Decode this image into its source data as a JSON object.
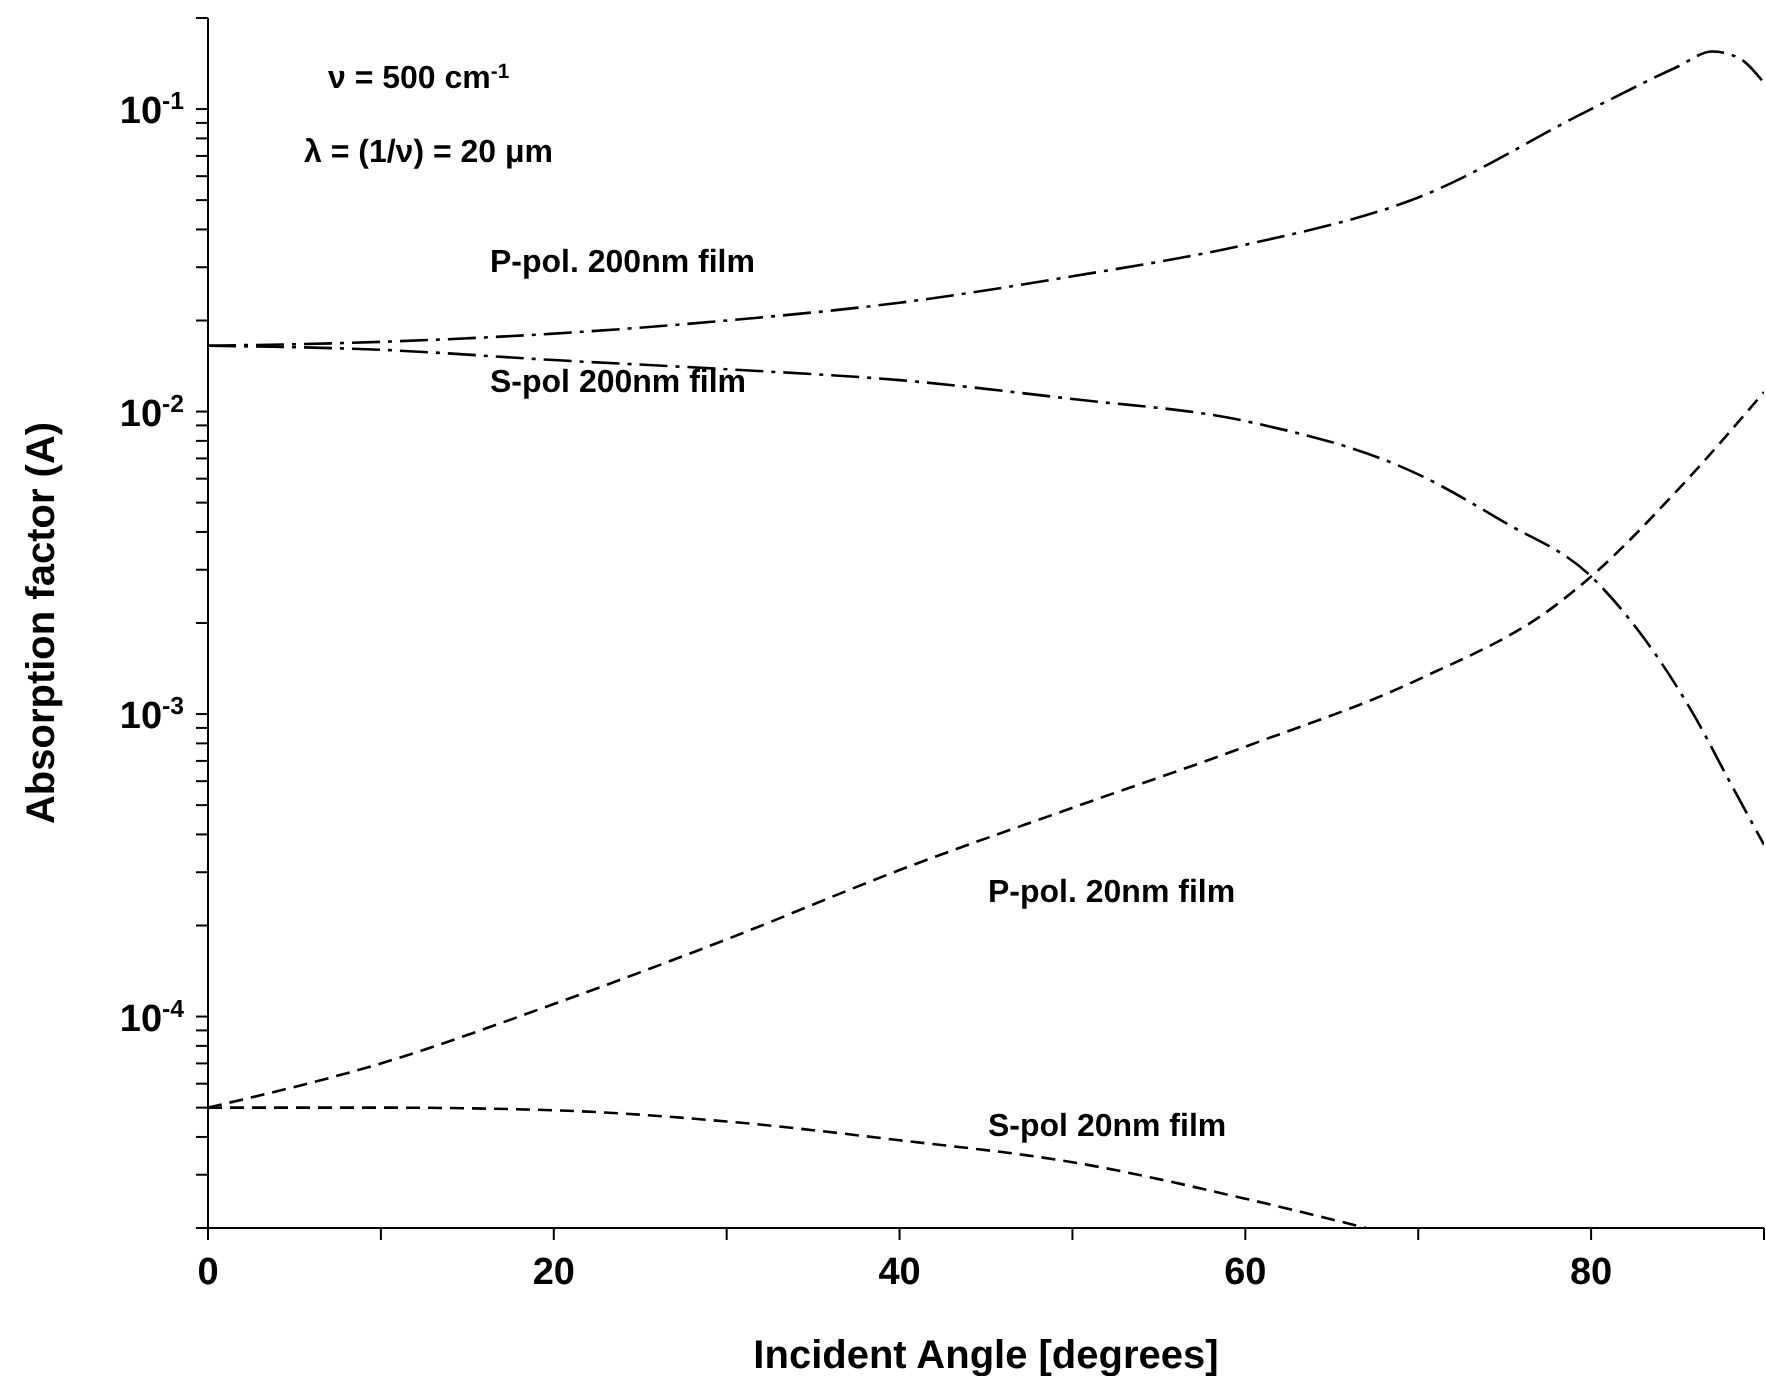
{
  "chart_data": {
    "type": "line",
    "xlabel": "Incident Angle [degrees]",
    "ylabel": "Absorption factor (A)",
    "log": "y",
    "marker": "none",
    "xlim": [
      0,
      90
    ],
    "xticks": [
      0,
      {
        "value": 10,
        "label": null
      },
      20,
      {
        "value": 30,
        "label": null
      },
      40,
      {
        "value": 50,
        "label": null
      },
      60,
      {
        "value": 70,
        "label": null
      },
      80,
      {
        "value": 90,
        "label": null
      }
    ],
    "ylim": [
      2e-05,
      0.2
    ],
    "yticks": [
      {
        "value": 2e-05,
        "label": null
      },
      {
        "value": 3e-05,
        "label": null
      },
      {
        "value": 4e-05,
        "label": null
      },
      {
        "value": 5e-05,
        "label": null
      },
      {
        "value": 6e-05,
        "label": null
      },
      {
        "value": 7e-05,
        "label": null
      },
      {
        "value": 8e-05,
        "label": null
      },
      {
        "value": 9e-05,
        "label": null
      },
      {
        "value": 0.0001,
        "label": "10$^{-4}$"
      },
      {
        "value": 0.0002,
        "label": null
      },
      {
        "value": 0.0003,
        "label": null
      },
      {
        "value": 0.0004,
        "label": null
      },
      {
        "value": 0.0005,
        "label": null
      },
      {
        "value": 0.0006,
        "label": null
      },
      {
        "value": 0.0007,
        "label": null
      },
      {
        "value": 0.0008,
        "label": null
      },
      {
        "value": 0.0009,
        "label": null
      },
      {
        "value": 0.001,
        "label": "10$^{-3}$"
      },
      {
        "value": 0.002,
        "label": null
      },
      {
        "value": 0.003,
        "label": null
      },
      {
        "value": 0.004,
        "label": null
      },
      {
        "value": 0.005,
        "label": null
      },
      {
        "value": 0.006,
        "label": null
      },
      {
        "value": 0.007,
        "label": null
      },
      {
        "value": 0.008,
        "label": null
      },
      {
        "value": 0.009,
        "label": null
      },
      {
        "value": 0.01,
        "label": "10$^{-2}$"
      },
      {
        "value": 0.02,
        "label": null
      },
      {
        "value": 0.03,
        "label": null
      },
      {
        "value": 0.04,
        "label": null
      },
      {
        "value": 0.05,
        "label": null
      },
      {
        "value": 0.06,
        "label": null
      },
      {
        "value": 0.07,
        "label": null
      },
      {
        "value": 0.08,
        "label": null
      },
      {
        "value": 0.09,
        "label": null
      },
      {
        "value": 0.1,
        "label": "10$^{-1}$"
      },
      {
        "value": 0.2,
        "label": null
      }
    ],
    "series": [
      {
        "name": "P-pol. 200nm film",
        "color": "#000000",
        "line_style": "dashed",
        "x": [
          0,
          10,
          20,
          30,
          40,
          50,
          60,
          70,
          80,
          85,
          87,
          88.5,
          90
        ],
        "values": [
          0.0165,
          0.017,
          0.0181,
          0.02,
          0.0229,
          0.028,
          0.0356,
          0.051,
          0.1,
          0.138,
          0.155,
          0.148,
          0.122
        ]
      },
      {
        "name": "S-pol 200nm film",
        "color": "#000000",
        "line_style": "dashed",
        "x": [
          0,
          10,
          20,
          30,
          40,
          50,
          60,
          70,
          75,
          80,
          83,
          86,
          88,
          90
        ],
        "values": [
          0.0165,
          0.016,
          0.0148,
          0.0138,
          0.0127,
          0.011,
          0.0093,
          0.0062,
          0.0043,
          0.00285,
          0.0018,
          0.00098,
          0.0006,
          0.00037
        ]
      },
      {
        "name": "P-pol. 20nm film",
        "color": "#000000",
        "line_style": "dashed",
        "x": [
          0,
          10,
          20,
          30,
          40,
          50,
          60,
          70,
          78,
          80,
          85,
          90
        ],
        "values": [
          5e-05,
          7e-05,
          0.00011,
          0.00018,
          0.000305,
          0.00049,
          0.00078,
          0.0013,
          0.0023,
          0.00285,
          0.0055,
          0.0116
        ]
      },
      {
        "name": "S-pol 20nm film",
        "color": "#000000",
        "line_style": "dashed",
        "x": [
          0,
          10,
          20,
          30,
          40,
          50,
          60,
          67
        ],
        "values": [
          5e-05,
          5e-05,
          4.9e-05,
          4.5e-05,
          3.9e-05,
          3.3e-05,
          2.5e-05,
          2e-05
        ]
      }
    ],
    "annotations": [
      "ν = 500 cm$^{-1}$",
      "λ = (1/ν) = 20 μm"
    ]
  }
}
